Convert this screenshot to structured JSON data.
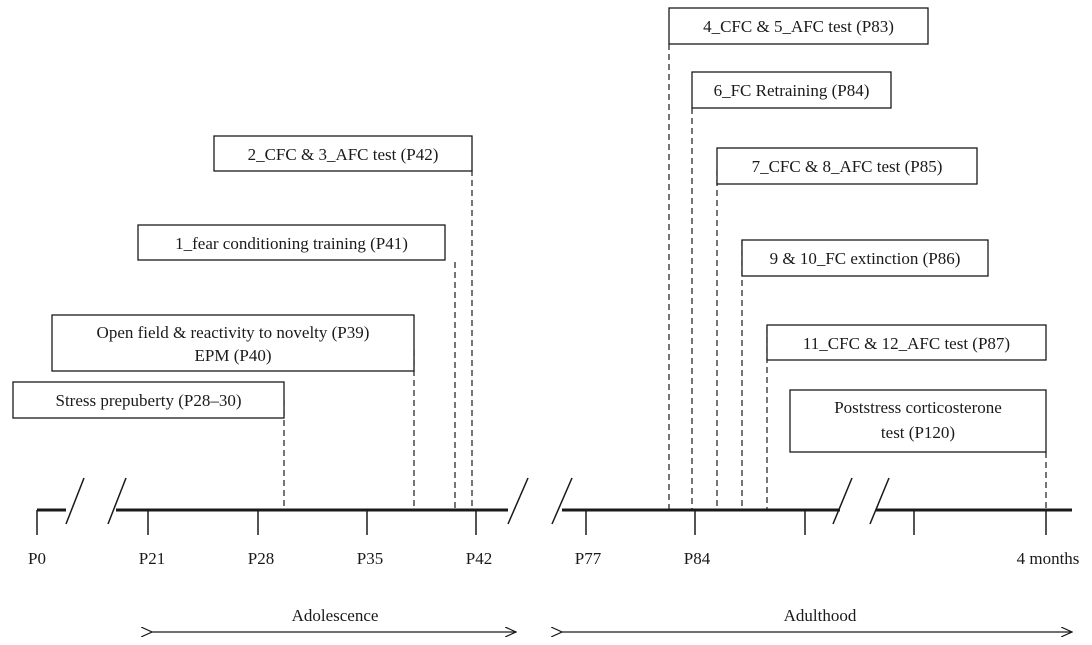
{
  "timeline": {
    "ticks": [
      "P0",
      "P21",
      "P28",
      "P35",
      "P42",
      "P77",
      "P84",
      "4 months"
    ],
    "periods": [
      "Adolescence",
      "Adulthood"
    ]
  },
  "events": [
    "Stress prepuberty (P28–30)",
    "Open field & reactivity to novelty (P39)",
    "EPM (P40)",
    "1_fear conditioning training (P41)",
    "2_CFC & 3_AFC test (P42)",
    "4_CFC & 5_AFC test (P83)",
    "6_FC Retraining (P84)",
    "7_CFC & 8_AFC test (P85)",
    "9 & 10_FC extinction (P86)",
    "11_CFC & 12_AFC test (P87)",
    "Poststress corticosterone",
    "test (P120)"
  ]
}
